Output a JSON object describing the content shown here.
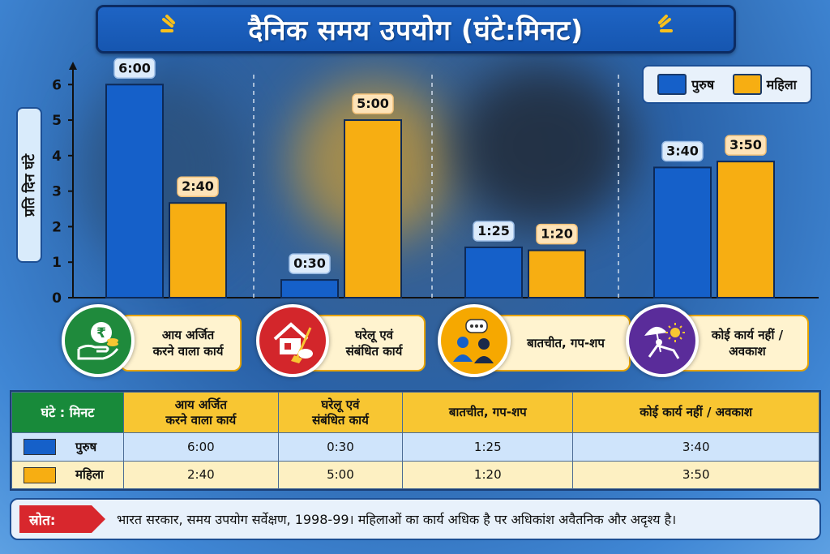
{
  "title": "दैनिक समय उपयोग (घंटे:मिनट)",
  "colors": {
    "men": "#1560c9",
    "women": "#f7ae12"
  },
  "legend": {
    "men": "पुरुष",
    "women": "महिला"
  },
  "categories": [
    {
      "label": "आय अर्जित\nकरने वाला कार्य",
      "icon": "rupee-hand-icon",
      "icon_bg": "#1f8a3c"
    },
    {
      "label": "घरेलू एवं\nसंबंधित कार्य",
      "icon": "house-broom-icon",
      "icon_bg": "#d3262b"
    },
    {
      "label": "बातचीत, गप-शप",
      "icon": "people-chat-icon",
      "icon_bg": "#f6a800"
    },
    {
      "label": "कोई कार्य नहीं /\nअवकाश",
      "icon": "beach-chair-sun-icon",
      "icon_bg": "#5a2c9a"
    }
  ],
  "table": {
    "corner": "घंटे : मिनट",
    "headers": [
      "आय अर्जित\nकरने वाला कार्य",
      "घरेलू एवं\nसंबंधित कार्य",
      "बातचीत, गप-शप",
      "कोई कार्य नहीं / अवकाश"
    ],
    "rows": [
      {
        "label": "पुरुष",
        "values": [
          "6:00",
          "0:30",
          "1:25",
          "3:40"
        ]
      },
      {
        "label": "महिला",
        "values": [
          "2:40",
          "5:00",
          "1:20",
          "3:50"
        ]
      }
    ]
  },
  "source": {
    "tag": "स्रोत:",
    "text": "भारत सरकार, समय उपयोग सर्वेक्षण, 1998-99।  महिलाओं का कार्य अधिक है पर अधिकांश अवैतनिक और अदृश्य है।"
  },
  "chart_data": {
    "type": "bar",
    "title": "दैनिक समय उपयोग (घंटे:मिनट)",
    "ylabel": "प्रति दिन घंटे",
    "xlabel": "",
    "ylim": [
      0,
      6.6
    ],
    "yticks": [
      0,
      1,
      2,
      3,
      4,
      5,
      6
    ],
    "grid": false,
    "legend_position": "top-right",
    "categories": [
      "आय अर्जित करने वाला कार्य",
      "घरेलू एवं संबंधित कार्य",
      "बातचीत, गप-शप",
      "कोई कार्य नहीं / अवकाश"
    ],
    "series": [
      {
        "name": "पुरुष",
        "values": [
          6.0,
          0.5,
          1.4167,
          3.6667
        ],
        "labels": [
          "6:00",
          "0:30",
          "1:25",
          "3:40"
        ]
      },
      {
        "name": "महिला",
        "values": [
          2.6667,
          5.0,
          1.3333,
          3.8333
        ],
        "labels": [
          "2:40",
          "5:00",
          "1:20",
          "3:50"
        ]
      }
    ]
  }
}
